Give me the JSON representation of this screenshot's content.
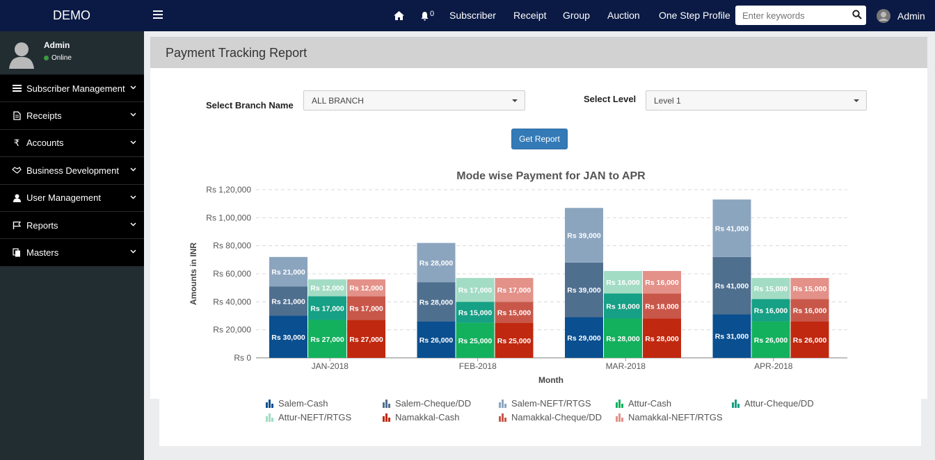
{
  "brand": "DEMO",
  "topnav": {
    "bell_count": "0",
    "links": [
      "Subscriber",
      "Receipt",
      "Group",
      "Auction",
      "One Step Profile"
    ],
    "search_placeholder": "Enter keywords",
    "user": "Admin"
  },
  "sidebar": {
    "user_name": "Admin",
    "user_status": "Online",
    "items": [
      {
        "label": "Subscriber Management",
        "icon": "list-icon"
      },
      {
        "label": "Receipts",
        "icon": "document-icon"
      },
      {
        "label": "Accounts",
        "icon": "rupee-icon"
      },
      {
        "label": "Business Development",
        "icon": "handshake-icon"
      },
      {
        "label": "User Management",
        "icon": "user-icon"
      },
      {
        "label": "Reports",
        "icon": "flag-icon"
      },
      {
        "label": "Masters",
        "icon": "copy-icon"
      }
    ]
  },
  "page": {
    "title": "Payment Tracking Report",
    "branch_label": "Select Branch Name",
    "branch_value": "ALL BRANCH",
    "level_label": "Select Level",
    "level_value": "Level 1",
    "button": "Get Report"
  },
  "chart_data": {
    "type": "bar",
    "stacked": true,
    "title": "Mode wise Payment for JAN to APR",
    "xlabel": "Month",
    "ylabel": "Amounts in INR",
    "ylim": [
      0,
      120000
    ],
    "yticks": [
      "Rs 0",
      "Rs 20,000",
      "Rs 40,000",
      "Rs 60,000",
      "Rs 80,000",
      "Rs 1,00,000",
      "Rs 1,20,000"
    ],
    "categories": [
      "JAN-2018",
      "FEB-2018",
      "MAR-2018",
      "APR-2018"
    ],
    "stacks": [
      {
        "name": "Salem",
        "series": [
          {
            "name": "Salem-Cash",
            "color": "#0a4f8f",
            "values": [
              30000,
              26000,
              29000,
              31000
            ],
            "labels": [
              "Rs 30,000",
              "Rs 26,000",
              "Rs 29,000",
              "Rs 31,000"
            ]
          },
          {
            "name": "Salem-Cheque/DD",
            "color": "#4f6f8f",
            "values": [
              21000,
              28000,
              39000,
              41000
            ],
            "labels": [
              "Rs 21,000",
              "Rs 28,000",
              "Rs 39,000",
              "Rs 41,000"
            ]
          },
          {
            "name": "Salem-NEFT/RTGS",
            "color": "#8ca5bf",
            "values": [
              21000,
              28000,
              39000,
              41000
            ],
            "labels": [
              "Rs 21,000",
              "Rs 28,000",
              "Rs 39,000",
              "Rs 41,000"
            ]
          }
        ]
      },
      {
        "name": "Attur",
        "series": [
          {
            "name": "Attur-Cash",
            "color": "#13b15d",
            "values": [
              27000,
              25000,
              28000,
              26000
            ],
            "labels": [
              "Rs 27,000",
              "Rs 25,000",
              "Rs 28,000",
              "Rs 26,000"
            ]
          },
          {
            "name": "Attur-Cheque/DD",
            "color": "#16a085",
            "values": [
              17000,
              15000,
              18000,
              16000
            ],
            "labels": [
              "Rs 17,000",
              "Rs 15,000",
              "Rs 18,000",
              "Rs 16,000"
            ]
          },
          {
            "name": "Attur-NEFT/RTGS",
            "color": "#a3dcc4",
            "values": [
              12000,
              17000,
              16000,
              15000
            ],
            "labels": [
              "Rs 12,000",
              "Rs 17,000",
              "Rs 16,000",
              "Rs 15,000"
            ]
          }
        ]
      },
      {
        "name": "Namakkal",
        "series": [
          {
            "name": "Namakkal-Cash",
            "color": "#c0280f",
            "values": [
              27000,
              25000,
              28000,
              26000
            ],
            "labels": [
              "Rs 27,000",
              "Rs 25,000",
              "Rs 28,000",
              "Rs 26,000"
            ]
          },
          {
            "name": "Namakkal-Cheque/DD",
            "color": "#c8574a",
            "values": [
              17000,
              15000,
              18000,
              16000
            ],
            "labels": [
              "Rs 17,000",
              "Rs 15,000",
              "Rs 18,000",
              "Rs 16,000"
            ]
          },
          {
            "name": "Namakkal-NEFT/RTGS",
            "color": "#e39189",
            "values": [
              12000,
              17000,
              16000,
              15000
            ],
            "labels": [
              "Rs 12,000",
              "Rs 17,000",
              "Rs 16,000",
              "Rs 15,000"
            ]
          }
        ]
      }
    ],
    "legend": [
      {
        "name": "Salem-Cash",
        "color": "#0a4f8f"
      },
      {
        "name": "Salem-Cheque/DD",
        "color": "#4f6f8f"
      },
      {
        "name": "Salem-NEFT/RTGS",
        "color": "#8ca5bf"
      },
      {
        "name": "Attur-Cash",
        "color": "#13b15d"
      },
      {
        "name": "Attur-Cheque/DD",
        "color": "#16a085"
      },
      {
        "name": "Attur-NEFT/RTGS",
        "color": "#a3dcc4"
      },
      {
        "name": "Namakkal-Cash",
        "color": "#c0280f"
      },
      {
        "name": "Namakkal-Cheque/DD",
        "color": "#c8574a"
      },
      {
        "name": "Namakkal-NEFT/RTGS",
        "color": "#e39189"
      }
    ]
  }
}
